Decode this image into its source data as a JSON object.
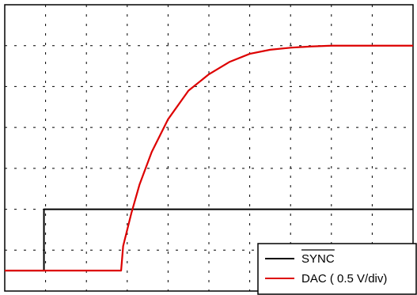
{
  "chart_data": {
    "type": "line",
    "grid": true,
    "x_divisions": 10,
    "y_divisions": 7,
    "legend_placement": "bottom-right",
    "series": [
      {
        "name": "SYNC",
        "color": "#000000",
        "display_overline": true,
        "points": [
          [
            0,
            0.5
          ],
          [
            0.96,
            0.5
          ],
          [
            0.96,
            2.0
          ],
          [
            10,
            2.0
          ]
        ]
      },
      {
        "name": "DAC ( 0.5 V/div)",
        "color": "#dd0000",
        "points": [
          [
            0,
            0.5
          ],
          [
            2.0,
            0.5
          ],
          [
            2.85,
            0.5
          ],
          [
            2.9,
            1.1
          ],
          [
            3.0,
            1.5
          ],
          [
            3.1,
            1.9
          ],
          [
            3.3,
            2.6
          ],
          [
            3.6,
            3.4
          ],
          [
            4.0,
            4.2
          ],
          [
            4.5,
            4.9
          ],
          [
            5.0,
            5.3
          ],
          [
            5.5,
            5.6
          ],
          [
            6.0,
            5.8
          ],
          [
            6.5,
            5.9
          ],
          [
            7.0,
            5.95
          ],
          [
            7.5,
            5.98
          ],
          [
            8.0,
            6.0
          ],
          [
            10,
            6.0
          ]
        ]
      }
    ]
  }
}
